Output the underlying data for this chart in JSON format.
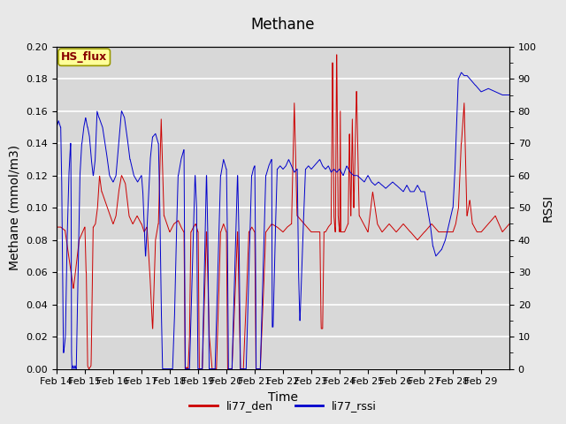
{
  "title": "Methane",
  "xlabel": "Time",
  "ylabel_left": "Methane (mmol/m3)",
  "ylabel_right": "RSSI",
  "left_ylim": [
    0.0,
    0.2
  ],
  "right_ylim": [
    0,
    100
  ],
  "tick_days": [
    14,
    15,
    16,
    17,
    18,
    19,
    20,
    21,
    22,
    23,
    24,
    25,
    26,
    27,
    28,
    29
  ],
  "legend_labels": [
    "li77_den",
    "li77_rssi"
  ],
  "line_color_den": "#cc0000",
  "line_color_rssi": "#0000cc",
  "fig_bg_color": "#e8e8e8",
  "plot_bg_color": "#d8d8d8",
  "annotation_text": "HS_flux",
  "annotation_bg": "#ffff99",
  "annotation_border": "#999900",
  "annotation_text_color": "#880000",
  "grid_color": "white",
  "title_fontsize": 12,
  "axis_label_fontsize": 10,
  "tick_fontsize": 8,
  "legend_fontsize": 9
}
